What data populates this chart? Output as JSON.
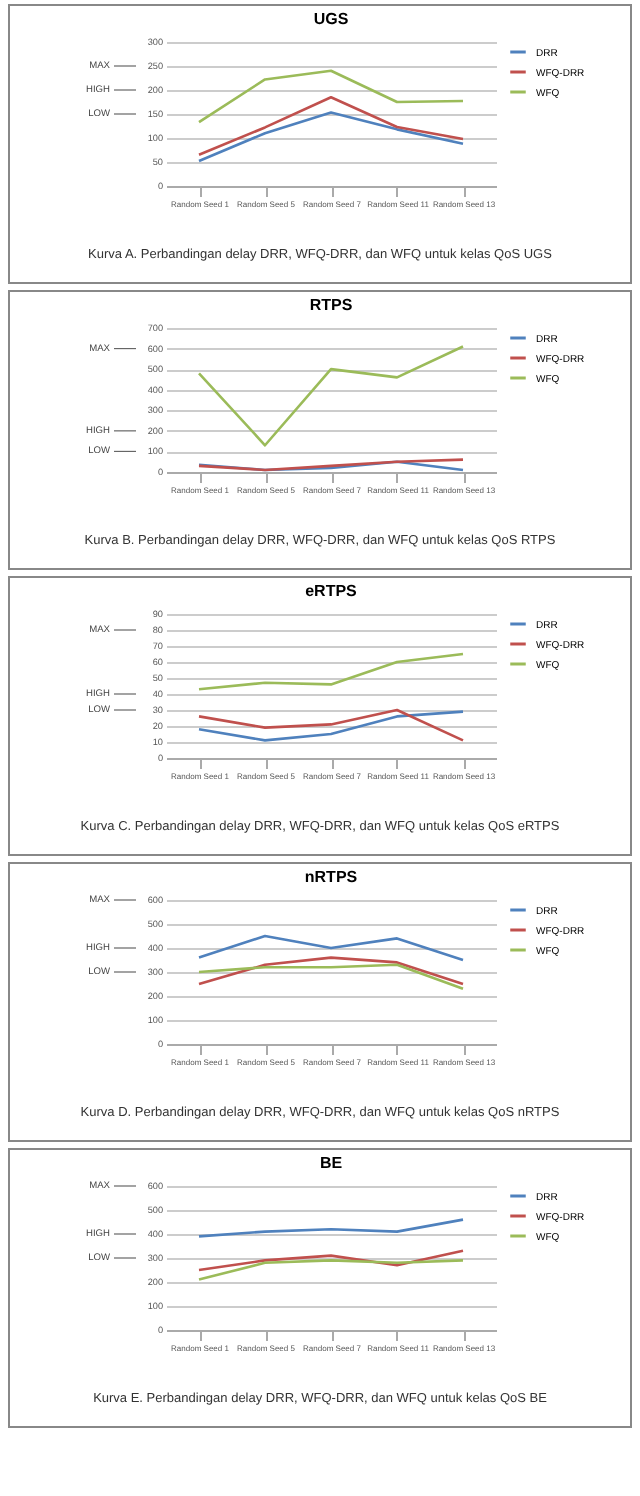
{
  "chart_data": [
    {
      "type": "line",
      "title": "UGS",
      "categories": [
        "Random Seed 1",
        "Random Seed 5",
        "Random Seed 7",
        "Random Seed 11",
        "Random Seed 13"
      ],
      "ylim": [
        0,
        300
      ],
      "yticks": [
        0,
        50,
        100,
        150,
        200,
        250,
        300
      ],
      "grid": "y",
      "legend": "right",
      "marker": "none",
      "ref_lines": [
        {
          "axis": "y",
          "value": 250,
          "label": "MAX"
        },
        {
          "axis": "y",
          "value": 200,
          "label": "HIGH"
        },
        {
          "axis": "y",
          "value": 150,
          "label": "LOW"
        }
      ],
      "annotations": [
        "Kurva A. Perbandingan delay DRR, WFQ-DRR, dan WFQ untuk kelas QoS UGS"
      ],
      "series": [
        {
          "name": "DRR",
          "color": "#4f81bd",
          "values": [
            52,
            110,
            153,
            118,
            88
          ]
        },
        {
          "name": "WFQ-DRR",
          "color": "#c0504d",
          "values": [
            65,
            122,
            185,
            123,
            98
          ]
        },
        {
          "name": "WFQ",
          "color": "#9bbb59",
          "values": [
            133,
            222,
            240,
            175,
            177
          ]
        }
      ]
    },
    {
      "type": "line",
      "title": "RTPS",
      "categories": [
        "Random Seed 1",
        "Random Seed 5",
        "Random Seed 7",
        "Random Seed 11",
        "Random Seed 13"
      ],
      "ylim": [
        0,
        700
      ],
      "yticks": [
        0,
        100,
        200,
        300,
        400,
        500,
        600,
        700
      ],
      "grid": "y",
      "legend": "right",
      "marker": "none",
      "ref_lines": [
        {
          "axis": "y",
          "value": 600,
          "label": "MAX"
        },
        {
          "axis": "y",
          "value": 200,
          "label": "HIGH"
        },
        {
          "axis": "y",
          "value": 100,
          "label": "LOW"
        }
      ],
      "annotations": [
        "Kurva B. Perbandingan delay DRR, WFQ-DRR, dan WFQ untuk kelas QoS RTPS"
      ],
      "series": [
        {
          "name": "DRR",
          "color": "#4f81bd",
          "values": [
            35,
            10,
            20,
            50,
            10
          ]
        },
        {
          "name": "WFQ-DRR",
          "color": "#c0504d",
          "values": [
            30,
            10,
            30,
            50,
            60
          ]
        },
        {
          "name": "WFQ",
          "color": "#9bbb59",
          "values": [
            480,
            130,
            500,
            460,
            610
          ]
        }
      ]
    },
    {
      "type": "line",
      "title": "eRTPS",
      "categories": [
        "Random Seed 1",
        "Random Seed 5",
        "Random Seed 7",
        "Random Seed 11",
        "Random Seed 13"
      ],
      "ylim": [
        0,
        90
      ],
      "yticks": [
        0,
        10,
        20,
        30,
        40,
        50,
        60,
        70,
        80,
        90
      ],
      "grid": "y",
      "legend": "right",
      "marker": "none",
      "ref_lines": [
        {
          "axis": "y",
          "value": 80,
          "label": "MAX"
        },
        {
          "axis": "y",
          "value": 40,
          "label": "HIGH"
        },
        {
          "axis": "y",
          "value": 30,
          "label": "LOW"
        }
      ],
      "annotations": [
        "Kurva C. Perbandingan delay DRR, WFQ-DRR, dan WFQ untuk kelas QoS eRTPS"
      ],
      "series": [
        {
          "name": "DRR",
          "color": "#4f81bd",
          "values": [
            18,
            11,
            15,
            26,
            29
          ]
        },
        {
          "name": "WFQ-DRR",
          "color": "#c0504d",
          "values": [
            26,
            19,
            21,
            30,
            11
          ]
        },
        {
          "name": "WFQ",
          "color": "#9bbb59",
          "values": [
            43,
            47,
            46,
            60,
            65
          ]
        }
      ]
    },
    {
      "type": "line",
      "title": "nRTPS",
      "categories": [
        "Random Seed 1",
        "Random Seed 5",
        "Random Seed 7",
        "Random Seed 11",
        "Random Seed 13"
      ],
      "ylim": [
        0,
        600
      ],
      "yticks": [
        0,
        100,
        200,
        300,
        400,
        500,
        600
      ],
      "grid": "y",
      "legend": "right",
      "marker": "none",
      "ref_lines": [
        {
          "axis": "y",
          "value": 600,
          "label": "MAX"
        },
        {
          "axis": "y",
          "value": 400,
          "label": "HIGH"
        },
        {
          "axis": "y",
          "value": 300,
          "label": "LOW"
        }
      ],
      "annotations": [
        "Kurva D. Perbandingan delay DRR, WFQ-DRR, dan WFQ untuk kelas QoS nRTPS"
      ],
      "series": [
        {
          "name": "DRR",
          "color": "#4f81bd",
          "values": [
            360,
            450,
            400,
            440,
            350
          ]
        },
        {
          "name": "WFQ-DRR",
          "color": "#c0504d",
          "values": [
            250,
            330,
            360,
            340,
            250
          ]
        },
        {
          "name": "WFQ",
          "color": "#9bbb59",
          "values": [
            300,
            320,
            320,
            330,
            230
          ]
        }
      ]
    },
    {
      "type": "line",
      "title": "BE",
      "categories": [
        "Random Seed 1",
        "Random Seed 5",
        "Random Seed 7",
        "Random Seed 11",
        "Random Seed 13"
      ],
      "ylim": [
        0,
        600
      ],
      "yticks": [
        0,
        100,
        200,
        300,
        400,
        500,
        600
      ],
      "grid": "y",
      "legend": "right",
      "marker": "none",
      "ref_lines": [
        {
          "axis": "y",
          "value": 600,
          "label": "MAX"
        },
        {
          "axis": "y",
          "value": 400,
          "label": "HIGH"
        },
        {
          "axis": "y",
          "value": 300,
          "label": "LOW"
        }
      ],
      "annotations": [
        "Kurva E. Perbandingan delay DRR, WFQ-DRR, dan WFQ untuk kelas QoS BE"
      ],
      "series": [
        {
          "name": "DRR",
          "color": "#4f81bd",
          "values": [
            390,
            410,
            420,
            410,
            460
          ]
        },
        {
          "name": "WFQ-DRR",
          "color": "#c0504d",
          "values": [
            250,
            290,
            310,
            270,
            330
          ]
        },
        {
          "name": "WFQ",
          "color": "#9bbb59",
          "values": [
            210,
            280,
            290,
            280,
            290
          ]
        }
      ]
    }
  ]
}
